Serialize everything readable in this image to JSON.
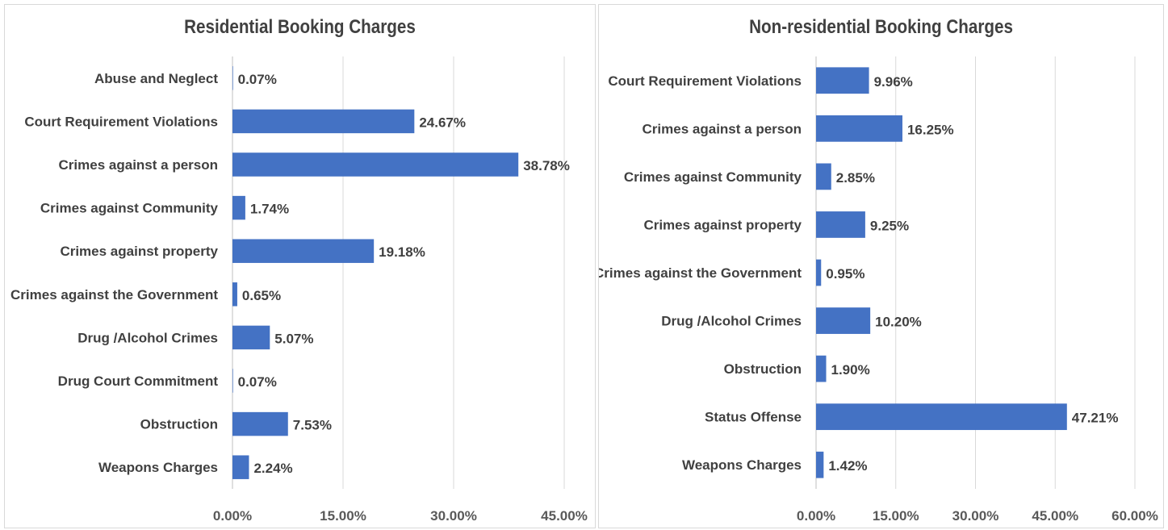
{
  "chart_data": [
    {
      "type": "bar",
      "orientation": "horizontal",
      "title": "Residential Booking Charges",
      "categories": [
        "Abuse and Neglect",
        "Court Requirement Violations",
        "Crimes against a person",
        "Crimes against Community",
        "Crimes against property",
        "Crimes against the Government",
        "Drug /Alcohol Crimes",
        "Drug Court Commitment",
        "Obstruction",
        "Weapons Charges"
      ],
      "values": [
        0.07,
        24.67,
        38.78,
        1.74,
        19.18,
        0.65,
        5.07,
        0.07,
        7.53,
        2.24
      ],
      "data_labels": [
        "0.07%",
        "24.67%",
        "38.78%",
        "1.74%",
        "19.18%",
        "0.65%",
        "5.07%",
        "0.07%",
        "7.53%",
        "2.24%"
      ],
      "xlim": [
        0,
        45
      ],
      "xticks": [
        0,
        15,
        30,
        45
      ],
      "xtick_labels": [
        "0.00%",
        "15.00%",
        "30.00%",
        "45.00%"
      ],
      "grid": true,
      "color": "#4472c4",
      "xlabel": "",
      "ylabel": ""
    },
    {
      "type": "bar",
      "orientation": "horizontal",
      "title": "Non-residential Booking Charges",
      "categories": [
        "Court Requirement Violations",
        "Crimes against a person",
        "Crimes against Community",
        "Crimes against property",
        "Crimes against the Government",
        "Drug /Alcohol Crimes",
        "Obstruction",
        "Status Offense",
        "Weapons Charges"
      ],
      "values": [
        9.96,
        16.25,
        2.85,
        9.25,
        0.95,
        10.2,
        1.9,
        47.21,
        1.42
      ],
      "data_labels": [
        "9.96%",
        "16.25%",
        "2.85%",
        "9.25%",
        "0.95%",
        "10.20%",
        "1.90%",
        "47.21%",
        "1.42%"
      ],
      "xlim": [
        0,
        60
      ],
      "xticks": [
        0,
        15,
        30,
        45,
        60
      ],
      "xtick_labels": [
        "0.00%",
        "15.00%",
        "30.00%",
        "45.00%",
        "60.00%"
      ],
      "grid": true,
      "color": "#4472c4",
      "xlabel": "",
      "ylabel": ""
    }
  ]
}
